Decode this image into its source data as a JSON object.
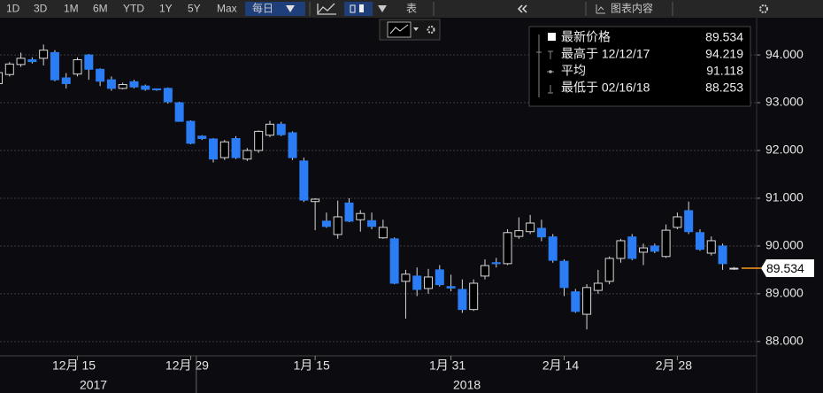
{
  "toolbar": {
    "ranges": [
      "1D",
      "3D",
      "1M",
      "6M",
      "YTD",
      "1Y",
      "5Y",
      "Max"
    ],
    "frequency": "每日",
    "table": "表",
    "chart_content": "图表内容"
  },
  "chart_data": {
    "type": "candlestick",
    "categories": [
      null,
      null,
      null,
      null,
      null,
      null,
      null,
      "12月 15",
      null,
      null,
      null,
      null,
      null,
      null,
      null,
      null,
      null,
      "12月 29",
      null,
      null,
      null,
      null,
      null,
      null,
      null,
      null,
      null,
      null,
      "1月 15",
      null,
      null,
      null,
      null,
      null,
      null,
      null,
      null,
      null,
      null,
      null,
      "1月 31",
      null,
      null,
      null,
      null,
      null,
      null,
      null,
      null,
      null,
      "2月 14",
      null,
      null,
      null,
      null,
      null,
      null,
      null,
      null,
      null,
      "2月 28",
      null,
      null,
      null,
      null,
      null
    ],
    "x_year_labels": [
      "2017",
      "2018"
    ],
    "open": [
      93.4,
      93.59,
      93.8,
      93.9,
      93.93,
      94.05,
      93.52,
      93.6,
      94.0,
      93.7,
      93.48,
      93.3,
      93.44,
      93.35,
      93.29,
      93.3,
      93.0,
      92.61,
      92.3,
      92.24,
      91.85,
      92.25,
      91.82,
      92.0,
      92.32,
      92.55,
      92.37,
      91.78,
      90.93,
      90.52,
      90.24,
      90.9,
      90.55,
      90.53,
      90.17,
      90.15,
      89.26,
      89.37,
      89.11,
      89.5,
      89.15,
      89.09,
      88.67,
      89.37,
      89.65,
      89.63,
      90.2,
      90.3,
      90.37,
      90.19,
      89.68,
      89.04,
      88.57,
      89.07,
      89.26,
      89.74,
      90.19,
      89.87,
      90.0,
      89.78,
      90.39,
      90.74,
      90.28,
      89.85,
      90.0,
      89.52
    ],
    "high": [
      93.7,
      93.85,
      94.05,
      93.95,
      94.219,
      94.1,
      93.62,
      93.95,
      94.02,
      93.72,
      93.55,
      93.42,
      93.48,
      93.38,
      93.3,
      93.32,
      93.02,
      92.63,
      92.32,
      92.26,
      92.22,
      92.3,
      92.05,
      92.42,
      92.62,
      92.6,
      92.4,
      91.85,
      91.0,
      90.7,
      90.95,
      91.0,
      90.75,
      90.7,
      90.55,
      90.18,
      89.5,
      89.55,
      89.52,
      89.6,
      89.4,
      89.3,
      89.3,
      89.72,
      89.75,
      90.35,
      90.6,
      90.65,
      90.55,
      90.25,
      89.72,
      89.1,
      89.2,
      89.5,
      89.78,
      90.15,
      90.25,
      90.05,
      90.05,
      90.45,
      90.7,
      90.93,
      90.35,
      90.2,
      90.05,
      89.56
    ],
    "low": [
      93.35,
      93.55,
      93.75,
      93.82,
      93.78,
      93.45,
      93.3,
      93.55,
      93.48,
      93.35,
      93.25,
      93.28,
      93.3,
      93.25,
      93.25,
      92.98,
      92.6,
      92.13,
      92.22,
      91.75,
      91.8,
      91.82,
      91.78,
      91.95,
      92.28,
      92.3,
      91.8,
      90.92,
      90.33,
      90.38,
      90.15,
      90.5,
      90.3,
      90.35,
      90.15,
      89.2,
      88.48,
      88.95,
      89.0,
      89.15,
      89.05,
      88.6,
      88.64,
      89.3,
      89.55,
      89.6,
      90.15,
      90.25,
      90.1,
      89.65,
      88.95,
      88.6,
      88.253,
      89.0,
      89.2,
      89.65,
      89.7,
      89.6,
      89.85,
      89.75,
      90.35,
      90.25,
      89.9,
      89.8,
      89.5,
      89.5
    ],
    "close": [
      93.63,
      93.81,
      93.93,
      93.86,
      94.1,
      93.48,
      93.4,
      93.9,
      93.7,
      93.45,
      93.3,
      93.38,
      93.33,
      93.28,
      93.27,
      93.02,
      92.61,
      92.15,
      92.25,
      91.82,
      92.18,
      91.85,
      92.0,
      92.4,
      92.55,
      92.33,
      91.85,
      90.96,
      90.98,
      90.41,
      90.61,
      90.52,
      90.68,
      90.41,
      90.39,
      89.22,
      89.41,
      89.09,
      89.35,
      89.19,
      89.12,
      88.67,
      89.22,
      89.59,
      89.63,
      90.28,
      90.32,
      90.48,
      90.19,
      89.7,
      89.13,
      88.63,
      89.13,
      89.22,
      89.74,
      90.11,
      89.74,
      89.96,
      89.89,
      90.33,
      90.61,
      90.3,
      89.93,
      90.11,
      89.63,
      89.534
    ],
    "up_color": "#000000",
    "down_color": "#2a7df5",
    "wick_color": "#d8d8d8",
    "last_color": "#ff9a1f",
    "ylim": [
      87.7,
      94.78
    ],
    "yticks": [
      {
        "value": 88,
        "label": "88.000"
      },
      {
        "value": 89,
        "label": "89.000"
      },
      {
        "value": 90,
        "label": "90.000"
      },
      {
        "value": 91,
        "label": "91.000"
      },
      {
        "value": 92,
        "label": "92.000"
      },
      {
        "value": 93,
        "label": "93.000"
      },
      {
        "value": 94,
        "label": "94.000"
      }
    ],
    "grid": true,
    "stats": [
      {
        "label": "最新价格",
        "value": 89.534
      },
      {
        "label": "最高于 12/12/17",
        "value": 94.219
      },
      {
        "label": "平均",
        "value": 91.118
      },
      {
        "label": "最低于 02/16/18",
        "value": 88.253
      }
    ]
  }
}
